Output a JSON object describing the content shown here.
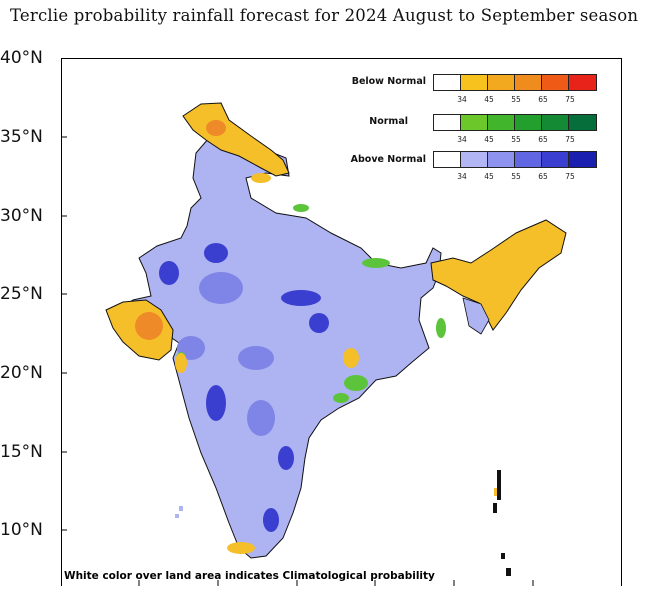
{
  "title": "Terclie probability rainfall forecast for 2024 August to September season",
  "y_axis": {
    "ticks": [
      "40°N",
      "35°N",
      "30°N",
      "25°N",
      "20°N",
      "15°N",
      "10°N"
    ]
  },
  "legend": {
    "below_normal": {
      "label": "Below Normal",
      "colors": [
        "#ffffff",
        "#f7c21d",
        "#f2a91f",
        "#ef8c1d",
        "#ef5a17",
        "#e8241a"
      ],
      "ticks": [
        "34",
        "45",
        "55",
        "65",
        "75"
      ]
    },
    "normal": {
      "label": "Normal",
      "colors": [
        "#ffffff",
        "#6cc72a",
        "#41b52b",
        "#239f2e",
        "#138a33",
        "#056e3a"
      ],
      "ticks": [
        "34",
        "45",
        "55",
        "65",
        "75"
      ]
    },
    "above_normal": {
      "label": "Above Normal",
      "colors": [
        "#ffffff",
        "#b2b6f4",
        "#8d93ee",
        "#6166e2",
        "#3a3ed1",
        "#1b1fb0"
      ],
      "ticks": [
        "34",
        "45",
        "55",
        "65",
        "75"
      ]
    }
  },
  "note": "White color over land area indicates Climatological probability",
  "colors": {
    "above_normal_fill": "#aeb3f2",
    "above_normal_dark": "#3a3fd0",
    "below_normal_fill": "#f5bf2a",
    "below_normal_dark": "#ef8a28",
    "normal_fill": "#5cc43a"
  }
}
